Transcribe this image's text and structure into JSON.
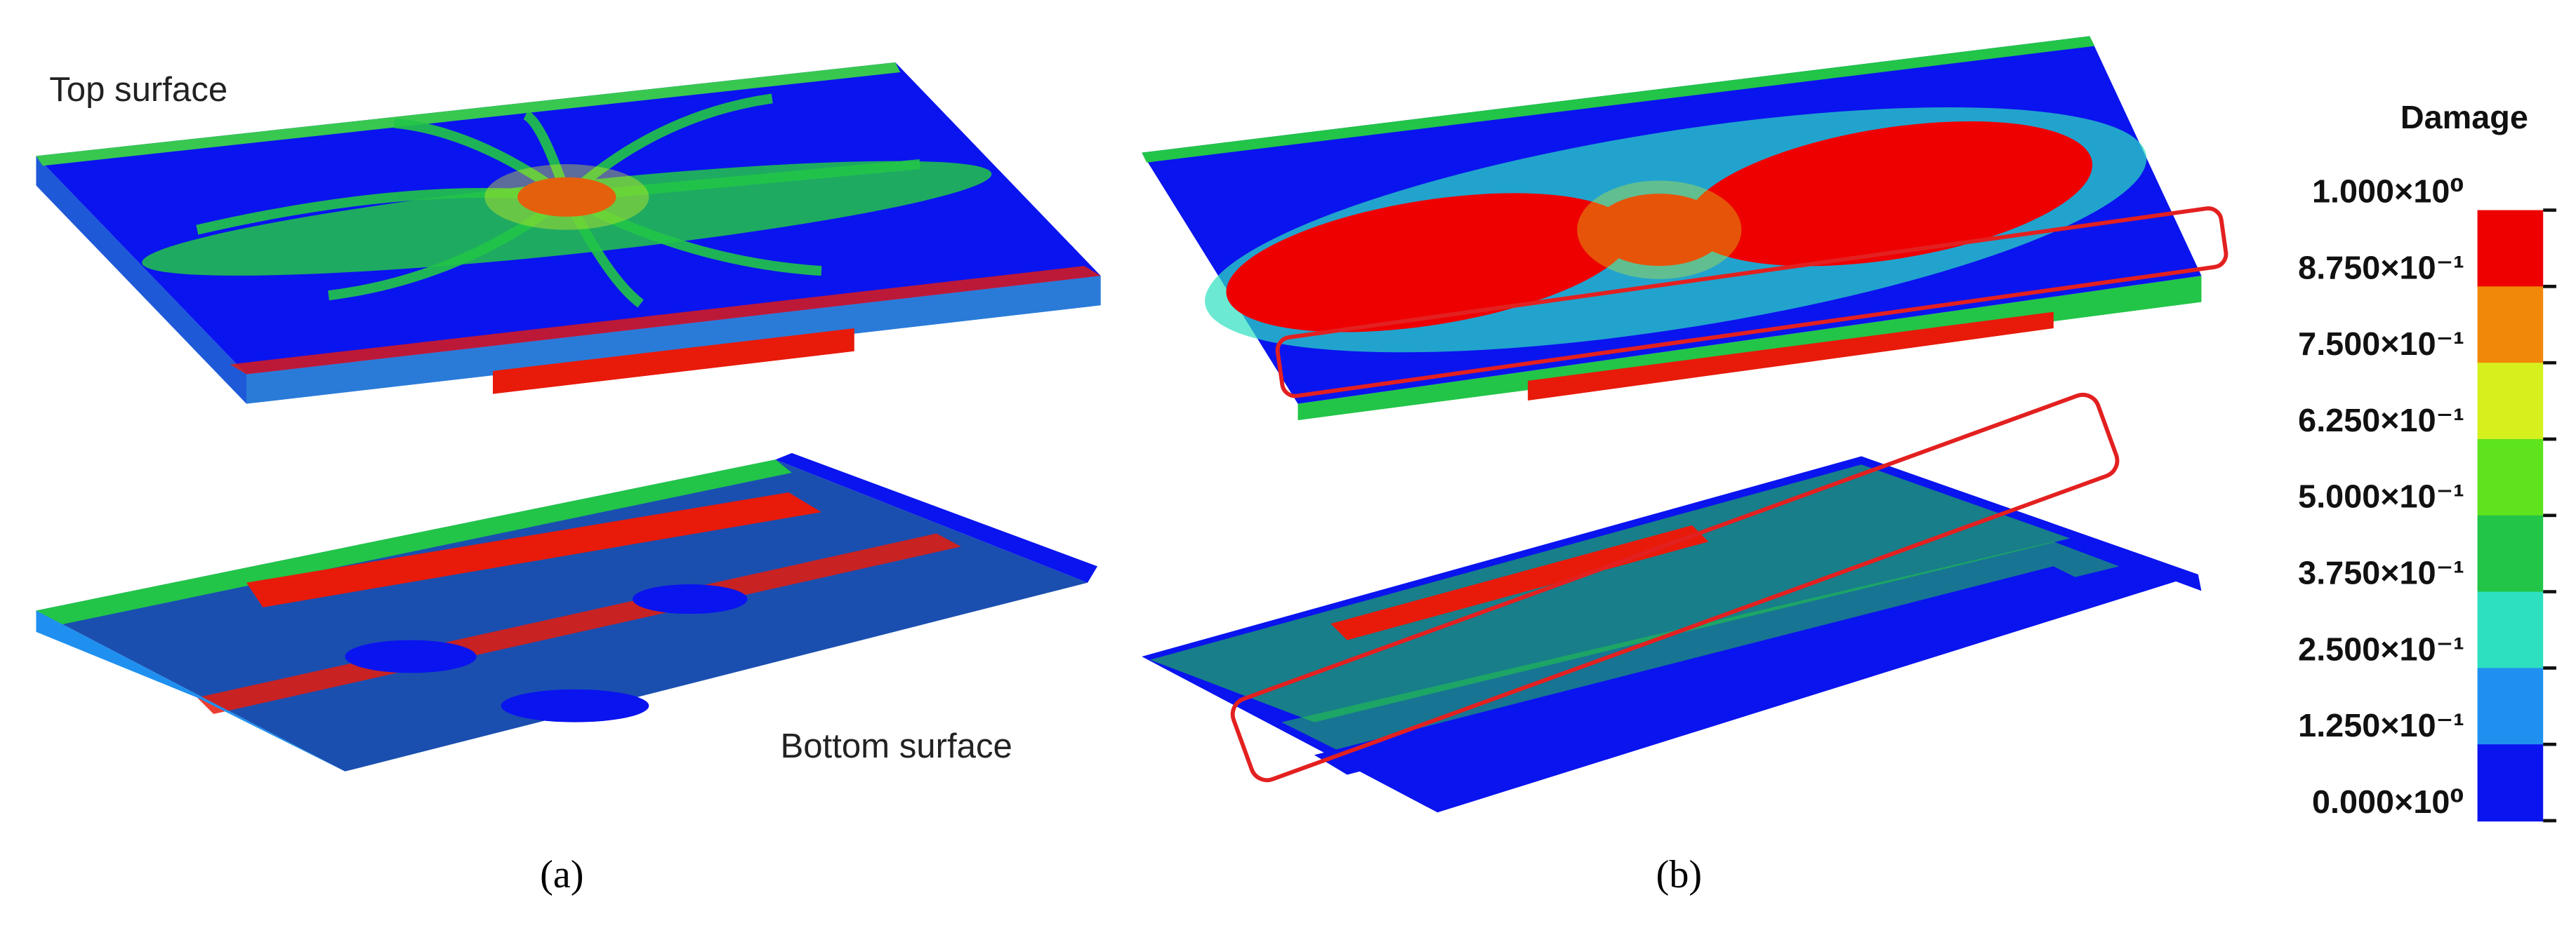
{
  "panels": [
    {
      "label": "(a)",
      "top_label": "Top surface",
      "bottom_label": "Bottom surface"
    },
    {
      "label": "(b)"
    }
  ],
  "legend": {
    "title": "Damage",
    "labels": [
      "1.000×10⁰",
      "8.750×10⁻¹",
      "7.500×10⁻¹",
      "6.250×10⁻¹",
      "5.000×10⁻¹",
      "3.750×10⁻¹",
      "2.500×10⁻¹",
      "1.250×10⁻¹",
      "0.000×10⁰"
    ],
    "colors": [
      "#ee0000",
      "#f2880a",
      "#d6f01e",
      "#5ee31c",
      "#22c548",
      "#2ce0c0",
      "#2090f0",
      "#0a14ee"
    ]
  }
}
